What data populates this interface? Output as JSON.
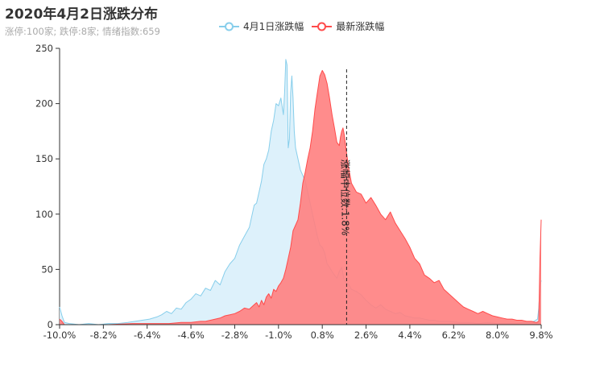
{
  "title": "2020年4月2日涨跌分布",
  "subtitle": "涨停:100家; 跌停:8家; 情绪指数:659",
  "legend": [
    {
      "name": "4月1日涨跌幅",
      "color": "#87CEEB"
    },
    {
      "name": "最新涨跌幅",
      "color": "#FF4B4B"
    }
  ],
  "annotation": {
    "label": "涨幅中位数:1.8%",
    "x": 1.8
  },
  "chart_data": {
    "type": "area",
    "x_ticks": [
      "-10.0%",
      "-8.2%",
      "-6.4%",
      "-4.6%",
      "-2.8%",
      "-1.0%",
      "0.8%",
      "2.6%",
      "4.4%",
      "6.2%",
      "8.0%",
      "9.8%"
    ],
    "xlim": [
      -10.0,
      9.8
    ],
    "ylim": [
      0,
      250
    ],
    "y_ticks": [
      0,
      50,
      100,
      150,
      200,
      250
    ],
    "legend_position": "top-center",
    "series": [
      {
        "name": "4月1日涨跌幅",
        "color": "#87CEEB",
        "fill": "#DDF1FB",
        "points": [
          [
            -10.0,
            16
          ],
          [
            -9.9,
            8
          ],
          [
            -9.8,
            2
          ],
          [
            -9.6,
            1
          ],
          [
            -9.2,
            0
          ],
          [
            -8.8,
            1
          ],
          [
            -8.4,
            0
          ],
          [
            -8.0,
            1
          ],
          [
            -7.6,
            1
          ],
          [
            -7.2,
            2
          ],
          [
            -6.9,
            3
          ],
          [
            -6.6,
            4
          ],
          [
            -6.3,
            5
          ],
          [
            -6.0,
            7
          ],
          [
            -5.8,
            9
          ],
          [
            -5.6,
            12
          ],
          [
            -5.4,
            10
          ],
          [
            -5.2,
            15
          ],
          [
            -5.0,
            14
          ],
          [
            -4.8,
            20
          ],
          [
            -4.6,
            23
          ],
          [
            -4.4,
            28
          ],
          [
            -4.2,
            26
          ],
          [
            -4.0,
            33
          ],
          [
            -3.8,
            31
          ],
          [
            -3.6,
            40
          ],
          [
            -3.4,
            36
          ],
          [
            -3.2,
            48
          ],
          [
            -3.0,
            55
          ],
          [
            -2.8,
            60
          ],
          [
            -2.6,
            72
          ],
          [
            -2.4,
            80
          ],
          [
            -2.2,
            88
          ],
          [
            -2.0,
            108
          ],
          [
            -1.9,
            110
          ],
          [
            -1.8,
            120
          ],
          [
            -1.7,
            130
          ],
          [
            -1.6,
            145
          ],
          [
            -1.5,
            150
          ],
          [
            -1.4,
            158
          ],
          [
            -1.3,
            175
          ],
          [
            -1.2,
            185
          ],
          [
            -1.1,
            200
          ],
          [
            -1.0,
            198
          ],
          [
            -0.9,
            205
          ],
          [
            -0.8,
            190
          ],
          [
            -0.75,
            210
          ],
          [
            -0.7,
            240
          ],
          [
            -0.65,
            235
          ],
          [
            -0.6,
            160
          ],
          [
            -0.55,
            168
          ],
          [
            -0.5,
            210
          ],
          [
            -0.45,
            225
          ],
          [
            -0.4,
            205
          ],
          [
            -0.35,
            175
          ],
          [
            -0.3,
            160
          ],
          [
            -0.2,
            150
          ],
          [
            -0.1,
            140
          ],
          [
            0.0,
            135
          ],
          [
            0.1,
            130
          ],
          [
            0.2,
            120
          ],
          [
            0.3,
            110
          ],
          [
            0.4,
            100
          ],
          [
            0.5,
            90
          ],
          [
            0.6,
            80
          ],
          [
            0.7,
            72
          ],
          [
            0.8,
            70
          ],
          [
            0.9,
            65
          ],
          [
            1.0,
            55
          ],
          [
            1.1,
            52
          ],
          [
            1.2,
            48
          ],
          [
            1.3,
            45
          ],
          [
            1.4,
            42
          ],
          [
            1.5,
            48
          ],
          [
            1.6,
            52
          ],
          [
            1.7,
            40
          ],
          [
            1.8,
            38
          ],
          [
            1.9,
            36
          ],
          [
            2.0,
            32
          ],
          [
            2.2,
            30
          ],
          [
            2.4,
            27
          ],
          [
            2.6,
            22
          ],
          [
            2.8,
            18
          ],
          [
            3.0,
            15
          ],
          [
            3.2,
            18
          ],
          [
            3.4,
            14
          ],
          [
            3.6,
            12
          ],
          [
            3.8,
            10
          ],
          [
            4.0,
            11
          ],
          [
            4.2,
            8
          ],
          [
            4.4,
            7
          ],
          [
            4.6,
            6
          ],
          [
            4.8,
            6
          ],
          [
            5.0,
            5
          ],
          [
            5.2,
            4
          ],
          [
            5.4,
            4
          ],
          [
            5.6,
            3
          ],
          [
            5.8,
            3
          ],
          [
            6.0,
            3
          ],
          [
            6.4,
            2
          ],
          [
            6.8,
            2
          ],
          [
            7.2,
            1
          ],
          [
            7.6,
            2
          ],
          [
            8.0,
            1
          ],
          [
            8.4,
            1
          ],
          [
            8.8,
            1
          ],
          [
            9.2,
            2
          ],
          [
            9.5,
            3
          ],
          [
            9.65,
            5
          ],
          [
            9.7,
            15
          ],
          [
            9.75,
            35
          ],
          [
            9.8,
            40
          ]
        ]
      },
      {
        "name": "最新涨跌幅",
        "color": "#FF4B4B",
        "fill": "#FF7F7F",
        "points": [
          [
            -10.0,
            5
          ],
          [
            -9.9,
            3
          ],
          [
            -9.8,
            0
          ],
          [
            -9.0,
            0
          ],
          [
            -8.0,
            0
          ],
          [
            -7.0,
            1
          ],
          [
            -6.4,
            1
          ],
          [
            -6.0,
            1
          ],
          [
            -5.5,
            1
          ],
          [
            -5.0,
            2
          ],
          [
            -4.6,
            2
          ],
          [
            -4.2,
            3
          ],
          [
            -4.0,
            3
          ],
          [
            -3.8,
            4
          ],
          [
            -3.6,
            5
          ],
          [
            -3.4,
            6
          ],
          [
            -3.2,
            8
          ],
          [
            -3.0,
            9
          ],
          [
            -2.8,
            10
          ],
          [
            -2.6,
            12
          ],
          [
            -2.4,
            15
          ],
          [
            -2.2,
            14
          ],
          [
            -2.0,
            18
          ],
          [
            -1.9,
            20
          ],
          [
            -1.8,
            16
          ],
          [
            -1.7,
            22
          ],
          [
            -1.6,
            18
          ],
          [
            -1.5,
            25
          ],
          [
            -1.4,
            28
          ],
          [
            -1.3,
            24
          ],
          [
            -1.2,
            32
          ],
          [
            -1.1,
            30
          ],
          [
            -1.0,
            35
          ],
          [
            -0.9,
            38
          ],
          [
            -0.8,
            42
          ],
          [
            -0.7,
            50
          ],
          [
            -0.6,
            60
          ],
          [
            -0.5,
            70
          ],
          [
            -0.4,
            85
          ],
          [
            -0.3,
            90
          ],
          [
            -0.2,
            95
          ],
          [
            -0.1,
            110
          ],
          [
            0.0,
            128
          ],
          [
            0.1,
            138
          ],
          [
            0.2,
            150
          ],
          [
            0.3,
            160
          ],
          [
            0.4,
            175
          ],
          [
            0.5,
            195
          ],
          [
            0.6,
            210
          ],
          [
            0.7,
            225
          ],
          [
            0.8,
            230
          ],
          [
            0.9,
            226
          ],
          [
            1.0,
            218
          ],
          [
            1.1,
            205
          ],
          [
            1.2,
            190
          ],
          [
            1.3,
            178
          ],
          [
            1.4,
            165
          ],
          [
            1.5,
            162
          ],
          [
            1.55,
            170
          ],
          [
            1.6,
            175
          ],
          [
            1.65,
            178
          ],
          [
            1.7,
            172
          ],
          [
            1.8,
            155
          ],
          [
            1.9,
            140
          ],
          [
            2.0,
            128
          ],
          [
            2.2,
            120
          ],
          [
            2.4,
            118
          ],
          [
            2.6,
            110
          ],
          [
            2.8,
            115
          ],
          [
            3.0,
            108
          ],
          [
            3.2,
            100
          ],
          [
            3.4,
            95
          ],
          [
            3.6,
            102
          ],
          [
            3.8,
            92
          ],
          [
            4.0,
            85
          ],
          [
            4.2,
            78
          ],
          [
            4.4,
            70
          ],
          [
            4.6,
            60
          ],
          [
            4.8,
            55
          ],
          [
            5.0,
            45
          ],
          [
            5.2,
            42
          ],
          [
            5.4,
            38
          ],
          [
            5.6,
            40
          ],
          [
            5.8,
            32
          ],
          [
            6.0,
            28
          ],
          [
            6.2,
            24
          ],
          [
            6.4,
            20
          ],
          [
            6.6,
            16
          ],
          [
            6.8,
            14
          ],
          [
            7.0,
            12
          ],
          [
            7.2,
            10
          ],
          [
            7.4,
            12
          ],
          [
            7.6,
            10
          ],
          [
            7.8,
            8
          ],
          [
            8.0,
            7
          ],
          [
            8.2,
            6
          ],
          [
            8.4,
            5
          ],
          [
            8.6,
            5
          ],
          [
            8.8,
            4
          ],
          [
            9.0,
            4
          ],
          [
            9.2,
            3
          ],
          [
            9.4,
            3
          ],
          [
            9.6,
            2
          ],
          [
            9.7,
            3
          ],
          [
            9.75,
            60
          ],
          [
            9.8,
            95
          ]
        ]
      }
    ]
  }
}
